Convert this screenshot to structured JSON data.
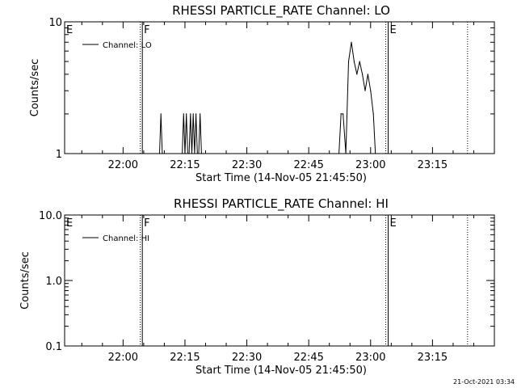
{
  "footer_timestamp": "21-Oct-2021 03:34",
  "chart_data": [
    {
      "type": "line",
      "title": "RHESSI PARTICLE_RATE Channel: LO",
      "xlabel": "Start Time (14-Nov-05 21:45:50)",
      "ylabel": "Counts/sec",
      "y_scale": "log",
      "ylim": [
        1,
        10
      ],
      "xlim": [
        "21:45:50",
        "23:30:00"
      ],
      "ytick_labels": [
        "1",
        "10"
      ],
      "xtick_labels": [
        "22:00",
        "22:15",
        "22:30",
        "22:45",
        "23:00",
        "23:15"
      ],
      "legend": {
        "placement": "top-left",
        "entry": "Channel: LO"
      },
      "markers": [
        {
          "label": "E",
          "time": "21:45:50",
          "style": "solid"
        },
        {
          "label": "F",
          "time": "22:04:40",
          "style": "solid"
        },
        {
          "label": "",
          "time": "22:04:10",
          "style": "dotted"
        },
        {
          "label": "E",
          "time": "23:04:15",
          "style": "solid"
        },
        {
          "label": "",
          "time": "23:03:40",
          "style": "dotted"
        },
        {
          "label": "",
          "time": "23:23:30",
          "style": "dotted"
        }
      ],
      "series": [
        {
          "x": [
            "22:08:50",
            "22:09:10",
            "22:09:30",
            "22:14:20",
            "22:14:40",
            "22:15:00",
            "22:15:20",
            "22:15:40",
            "22:16:00",
            "22:16:20",
            "22:16:40",
            "22:17:00",
            "22:17:20",
            "22:17:40",
            "22:18:00",
            "22:18:20",
            "22:18:40",
            "22:19:00",
            "22:19:20",
            "22:19:40",
            "22:52:20",
            "22:52:50",
            "22:53:20",
            "22:54:00",
            "22:54:40",
            "22:55:20",
            "22:56:00",
            "22:56:40",
            "22:57:20",
            "22:58:00",
            "22:58:40",
            "22:59:20",
            "23:00:00",
            "23:00:40",
            "23:01:10"
          ],
          "y": [
            1,
            2,
            1,
            1,
            2,
            1,
            2,
            1,
            1,
            2,
            1,
            2,
            1,
            2,
            1,
            1,
            2,
            1,
            1,
            1,
            1,
            2,
            2,
            1,
            5,
            7,
            5,
            4,
            5,
            4,
            3,
            4,
            3,
            2,
            1
          ]
        }
      ]
    },
    {
      "type": "line",
      "title": "RHESSI PARTICLE_RATE Channel: HI",
      "xlabel": "Start Time (14-Nov-05 21:45:50)",
      "ylabel": "Counts/sec",
      "y_scale": "log",
      "ylim": [
        0.1,
        10.0
      ],
      "xlim": [
        "21:45:50",
        "23:30:00"
      ],
      "ytick_labels": [
        "0.1",
        "1.0",
        "10.0"
      ],
      "xtick_labels": [
        "22:00",
        "22:15",
        "22:30",
        "22:45",
        "23:00",
        "23:15"
      ],
      "legend": {
        "placement": "top-left",
        "entry": "Channel: HI"
      },
      "markers": [
        {
          "label": "E",
          "time": "21:45:50",
          "style": "solid"
        },
        {
          "label": "F",
          "time": "22:04:40",
          "style": "solid"
        },
        {
          "label": "",
          "time": "22:04:10",
          "style": "dotted"
        },
        {
          "label": "E",
          "time": "23:04:15",
          "style": "solid"
        },
        {
          "label": "",
          "time": "23:03:40",
          "style": "dotted"
        },
        {
          "label": "",
          "time": "23:23:30",
          "style": "dotted"
        }
      ],
      "series": [
        {
          "x": [],
          "y": []
        }
      ]
    }
  ]
}
